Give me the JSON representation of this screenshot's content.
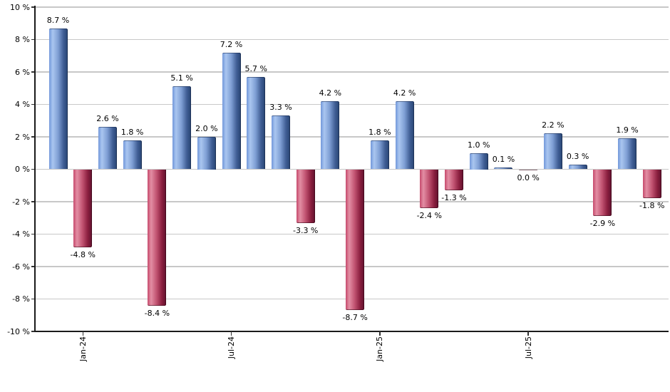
{
  "chart_data": {
    "type": "bar",
    "title": "",
    "xlabel": "",
    "ylabel": "",
    "ylim": [
      -10,
      10
    ],
    "grid": true,
    "legend_position": "none",
    "bars": [
      {
        "label": "8.7 %",
        "value": 8.7
      },
      {
        "label": "-4.8 %",
        "value": -4.8
      },
      {
        "label": "2.6 %",
        "value": 2.6
      },
      {
        "label": "1.8 %",
        "value": 1.8
      },
      {
        "label": "-8.4 %",
        "value": -8.4
      },
      {
        "label": "5.1 %",
        "value": 5.1
      },
      {
        "label": "2.0 %",
        "value": 2.0
      },
      {
        "label": "7.2 %",
        "value": 7.2
      },
      {
        "label": "5.7 %",
        "value": 5.7
      },
      {
        "label": "3.3 %",
        "value": 3.3
      },
      {
        "label": "-3.3 %",
        "value": -3.3
      },
      {
        "label": "4.2 %",
        "value": 4.2
      },
      {
        "label": "-8.7 %",
        "value": -8.7
      },
      {
        "label": "1.8 %",
        "value": 1.8
      },
      {
        "label": "4.2 %",
        "value": 4.2
      },
      {
        "label": "-2.4 %",
        "value": -2.4
      },
      {
        "label": "-1.3 %",
        "value": -1.3
      },
      {
        "label": "1.0 %",
        "value": 1.0
      },
      {
        "label": "0.1 %",
        "value": 0.1
      },
      {
        "label": "0.0 %",
        "value": 0.0,
        "negative": true
      },
      {
        "label": "2.2 %",
        "value": 2.2
      },
      {
        "label": "0.3 %",
        "value": 0.3
      },
      {
        "label": "-2.9 %",
        "value": -2.9
      },
      {
        "label": "1.9 %",
        "value": 1.9
      },
      {
        "label": "-1.8 %",
        "value": -1.8
      }
    ],
    "x_ticks": [
      {
        "index": 1,
        "label": "Jan-24"
      },
      {
        "index": 7,
        "label": "Jul-24"
      },
      {
        "index": 13,
        "label": "Jan-25"
      },
      {
        "index": 19,
        "label": "Jul-25"
      }
    ],
    "y_ticks": [
      {
        "value": 10,
        "label": "10 %"
      },
      {
        "value": 8,
        "label": "8 %"
      },
      {
        "value": 6,
        "label": "6 %"
      },
      {
        "value": 4,
        "label": "4 %"
      },
      {
        "value": 2,
        "label": "2 %"
      },
      {
        "value": 0,
        "label": "0 %"
      },
      {
        "value": -2,
        "label": "-2 %"
      },
      {
        "value": -4,
        "label": "-4 %"
      },
      {
        "value": -6,
        "label": "-6 %"
      },
      {
        "value": -8,
        "label": "-8 %"
      },
      {
        "value": -10,
        "label": "-10 %"
      }
    ],
    "colors": {
      "positive_light": "#aac6f0",
      "positive_mid": "#7298da",
      "positive_shade": "#7f9fd4",
      "positive_dark": "#2b4878",
      "negative_light": "#e38ea4",
      "negative_mid": "#c64a6c",
      "negative_shade": "#c25472",
      "negative_dark": "#671330",
      "gridline": "#c8c8c8",
      "axis": "#1a1a1a",
      "text": "#000000"
    }
  }
}
